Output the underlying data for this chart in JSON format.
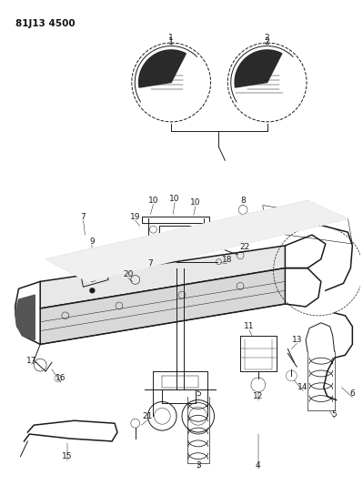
{
  "title": "81J13 4500",
  "background_color": "#ffffff",
  "fig_width": 3.99,
  "fig_height": 5.33,
  "dpi": 100,
  "line_color": "#1a1a1a",
  "lw": 0.7,
  "lw_thick": 1.1
}
